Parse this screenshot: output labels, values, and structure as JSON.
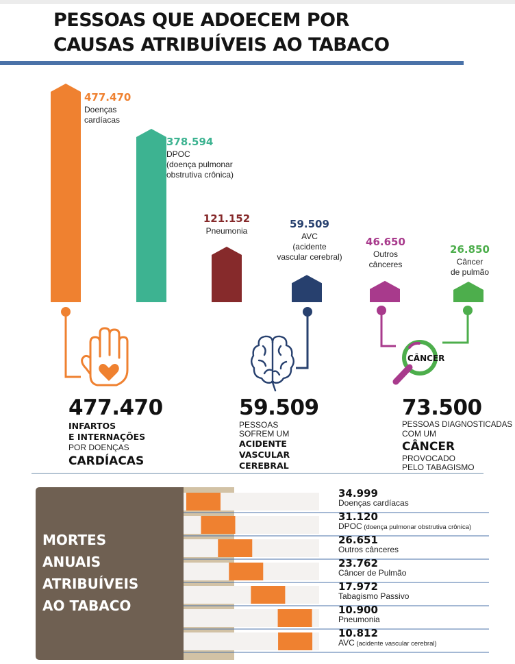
{
  "title_line1": "PESSOAS QUE ADOECEM POR",
  "title_line2": "CAUSAS ATRIBUÍVEIS AO TABACO",
  "colors": {
    "orange": "#ef8130",
    "teal": "#3db391",
    "darkred": "#862a2b",
    "navy": "#27406e",
    "purple": "#a83a8c",
    "green": "#4dae4c",
    "brown": "#6f6052",
    "rule_blue": "#4a72a8"
  },
  "chart_data": [
    {
      "type": "bar",
      "categories": [
        "Doenças cardíacas",
        "DPOC (doença pulmonar obstrutiva crônica)",
        "Pneumonia",
        "AVC (acidente vascular cerebral)",
        "Outros cânceres",
        "Câncer de pulmão"
      ],
      "values": [
        477470,
        378594,
        121152,
        59509,
        46650,
        26850
      ],
      "value_labels": [
        "477.470",
        "378.594",
        "121.152",
        "59.509",
        "46.650",
        "26.850"
      ],
      "label_lines": [
        [
          "Doenças",
          "cardíacas"
        ],
        [
          "DPOC",
          "(doença pulmonar",
          "obstrutiva crônica)"
        ],
        [
          "Pneumonia"
        ],
        [
          "AVC",
          "(acidente",
          "vascular cerebral)"
        ],
        [
          "Outros",
          "cânceres"
        ],
        [
          "Câncer",
          "de pulmão"
        ]
      ],
      "colors": [
        "#ef8130",
        "#3db391",
        "#862a2b",
        "#27406e",
        "#a83a8c",
        "#4dae4c"
      ]
    },
    {
      "type": "bar",
      "title_lines": [
        "MORTES",
        "ANUAIS",
        "ATRIBUÍVEIS",
        "AO TABACO"
      ],
      "categories": [
        "Doenças cardíacas",
        "DPOC",
        "Outros cânceres",
        "Câncer de Pulmão",
        "Tabagismo Passivo",
        "Pneumonia",
        "AVC"
      ],
      "values": [
        34999,
        31120,
        26651,
        23762,
        17972,
        10900,
        10812
      ],
      "value_labels": [
        "34.999",
        "31.120",
        "26.651",
        "23.762",
        "17.972",
        "10.900",
        "10.812"
      ],
      "label_main": [
        "Doenças cardíacas",
        "DPOC",
        "Outros cânceres",
        "Câncer de Pulmão",
        "Tabagismo Passivo",
        "Pneumonia",
        "AVC"
      ],
      "label_note": [
        "",
        "(doença pulmonar obstrutiva crônica)",
        "",
        "",
        "",
        "",
        "(acidente vascular cerebral)"
      ]
    }
  ],
  "highlights": {
    "heart": {
      "number": "477.470",
      "line1": "INFARTOS",
      "line2": "E INTERNAÇÕES",
      "line3": "POR DOENÇAS",
      "line4": "CARDÍACAS"
    },
    "stroke": {
      "number": "59.509",
      "line1": "PESSOAS",
      "line2": "SOFREM UM",
      "line3": "ACIDENTE",
      "line4": "VASCULAR",
      "line5": "CEREBRAL"
    },
    "cancer": {
      "number": "73.500",
      "line1": "PESSOAS DIAGNOSTICADAS",
      "line2": "COM UM",
      "line3": "CÂNCER",
      "line4": "PROVOCADO",
      "line5": "PELO TABAGISMO",
      "icon_text": "CÂNCER"
    }
  },
  "icons": {
    "heart": "hand-heart-icon",
    "stroke": "brain-icon",
    "cancer": "magnifier-icon"
  }
}
